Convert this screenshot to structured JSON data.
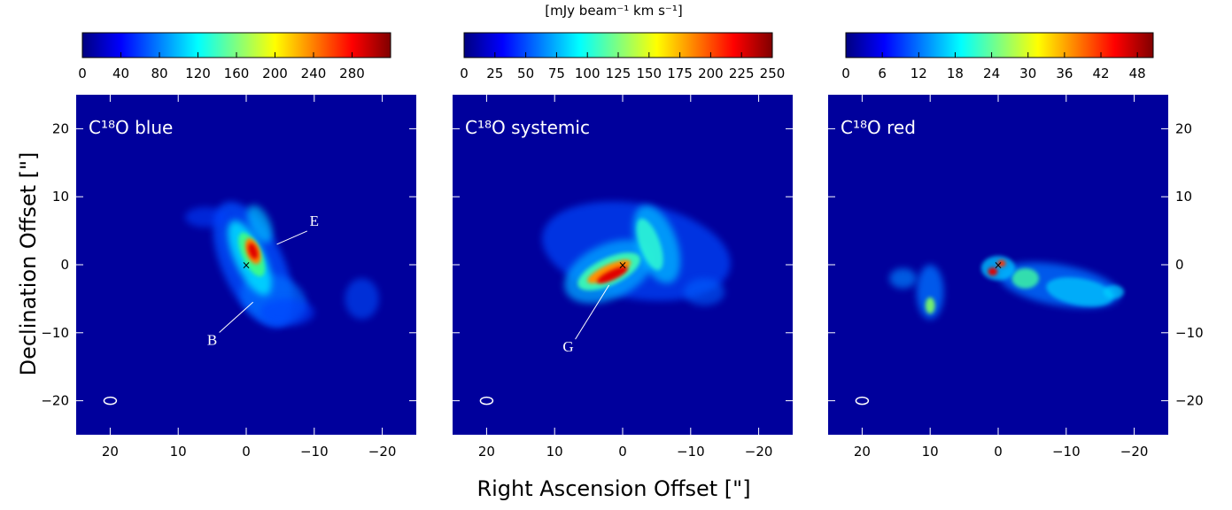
{
  "chart_data": [
    {
      "type": "heatmap",
      "title": "C¹⁸O blue",
      "xlim": [
        25,
        -25
      ],
      "ylim": [
        -25,
        25
      ],
      "xticks": [
        20,
        10,
        0,
        {
          "value": -10,
          "label": "−10"
        },
        {
          "value": -20,
          "label": "−20"
        }
      ],
      "yticks": [
        {
          "value": -20,
          "label": "−20"
        },
        {
          "value": -10,
          "label": "−10"
        },
        0,
        10,
        20
      ],
      "clim": [
        0,
        320
      ],
      "cticks": [
        0,
        40,
        80,
        120,
        160,
        200,
        240,
        280
      ],
      "annotations": [
        "E",
        "B"
      ]
    },
    {
      "type": "heatmap",
      "title": "C¹⁸O systemic",
      "xlim": [
        25,
        -25
      ],
      "ylim": [
        -25,
        25
      ],
      "xticks": [
        20,
        10,
        0,
        {
          "value": -10,
          "label": "−10"
        },
        {
          "value": -20,
          "label": "−20"
        }
      ],
      "yticks": [
        {
          "value": -20,
          "label": "−20"
        },
        {
          "value": -10,
          "label": "−10"
        },
        0,
        10,
        20
      ],
      "clim": [
        0,
        250
      ],
      "cticks": [
        0,
        25,
        50,
        75,
        100,
        125,
        150,
        175,
        200,
        225,
        250
      ],
      "annotations": [
        "G"
      ]
    },
    {
      "type": "heatmap",
      "title": "C¹⁸O red",
      "xlim": [
        25,
        -25
      ],
      "ylim": [
        -25,
        25
      ],
      "xticks": [
        20,
        10,
        0,
        {
          "value": -10,
          "label": "−10"
        },
        {
          "value": -20,
          "label": "−20"
        }
      ],
      "yticks": [
        {
          "value": -20,
          "label": "−20"
        },
        {
          "value": -10,
          "label": "−10"
        },
        0,
        10,
        20
      ],
      "clim": [
        0,
        50.6
      ],
      "cticks": [
        0,
        6,
        12,
        18,
        24,
        30,
        36,
        42,
        48
      ],
      "annotations": []
    }
  ],
  "colorbar_label": "[mJy beam⁻¹ km s⁻¹]",
  "xlabel": "Right Ascension Offset [\"]",
  "ylabel": "Declination Offset [\"]"
}
